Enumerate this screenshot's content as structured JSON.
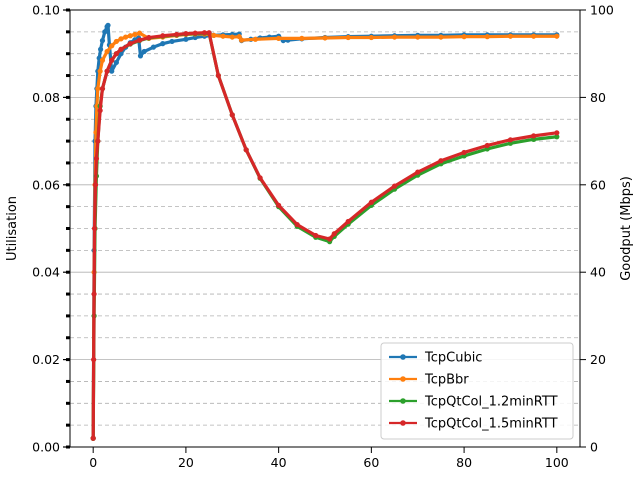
{
  "chart_data": {
    "type": "line",
    "xlabel": "",
    "ylabel_left": "Utilisation",
    "ylabel_right": "Goodput (Mbps)",
    "xlim": [
      -5,
      105
    ],
    "ylim_left": [
      0,
      0.1
    ],
    "ylim_right": [
      0,
      100
    ],
    "x_ticks": [
      0,
      20,
      40,
      60,
      80,
      100
    ],
    "y_left_ticks": [
      0.0,
      0.02,
      0.04,
      0.06,
      0.08,
      0.1
    ],
    "y_left_tick_labels": [
      "0.00",
      "0.02",
      "0.04",
      "0.06",
      "0.08",
      "0.10"
    ],
    "y_right_ticks": [
      0,
      20,
      40,
      60,
      80,
      100
    ],
    "grid": {
      "major_solid": [
        20,
        40,
        60,
        80
      ],
      "minor_dashed": [
        5,
        10,
        15,
        25,
        30,
        35,
        45,
        50,
        55,
        65,
        70,
        75,
        85,
        90,
        95
      ]
    },
    "legend_position": "lower right",
    "series": [
      {
        "name": "TcpCubic",
        "color": "#1f77b4",
        "x": [
          0,
          0.2,
          0.4,
          0.6,
          0.8,
          1.0,
          1.3,
          1.6,
          2.0,
          2.5,
          3.0,
          3.2,
          3.5,
          4,
          5,
          6,
          7,
          8,
          9,
          9.8,
          10.2,
          11,
          13,
          15,
          17,
          20,
          22,
          24,
          26,
          28,
          30,
          31.5,
          32,
          34,
          36,
          38,
          40,
          41,
          42,
          45,
          50,
          55,
          60,
          65,
          70,
          75,
          80,
          85,
          90,
          95,
          100
        ],
        "y": [
          2,
          45,
          70,
          78,
          82,
          86,
          89,
          91,
          93,
          95,
          96.2,
          96.5,
          92,
          86,
          88,
          90,
          91.5,
          92.5,
          93.2,
          93.6,
          89.5,
          90.5,
          91.5,
          92.3,
          92.8,
          93.3,
          93.7,
          94,
          94.2,
          94.3,
          94.4,
          94.5,
          93,
          93.3,
          93.6,
          93.8,
          94,
          93,
          93.1,
          93.4,
          93.7,
          93.9,
          94,
          94.1,
          94.2,
          94.2,
          94.3,
          94.3,
          94.3,
          94.3,
          94.3
        ]
      },
      {
        "name": "TcpBbr",
        "color": "#ff7f0e",
        "x": [
          0,
          0.2,
          0.4,
          0.6,
          0.8,
          1.0,
          1.5,
          2,
          3,
          4,
          5,
          6,
          7,
          8,
          9,
          10,
          12,
          15,
          18,
          20,
          22,
          24,
          26,
          28,
          30,
          31.5,
          32,
          35,
          40,
          45,
          50,
          55,
          60,
          65,
          70,
          75,
          80,
          85,
          90,
          95,
          100
        ],
        "y": [
          2,
          40,
          60,
          72,
          78,
          82,
          86,
          88.5,
          90.5,
          91.8,
          92.8,
          93.4,
          93.8,
          94.1,
          94.4,
          94.7,
          93.5,
          93.8,
          94.2,
          94.4,
          94.5,
          94.5,
          94.2,
          94.0,
          93.8,
          93.9,
          93.1,
          93.3,
          93.5,
          93.5,
          93.6,
          93.7,
          93.7,
          93.8,
          93.8,
          93.8,
          93.9,
          93.9,
          94.0,
          94.0,
          94.0
        ]
      },
      {
        "name": "TcpQtCol_1.2minRTT",
        "color": "#2ca02c",
        "x": [
          0,
          0.2,
          0.4,
          0.7,
          1.0,
          1.5,
          2,
          3,
          4,
          5,
          6,
          8,
          10,
          12,
          15,
          18,
          20,
          22,
          24,
          25,
          27,
          30,
          33,
          36,
          40,
          44,
          48,
          51,
          52,
          55,
          60,
          65,
          70,
          75,
          80,
          85,
          90,
          95,
          100
        ],
        "y": [
          2,
          30,
          50,
          62,
          70,
          78,
          82,
          86,
          88.5,
          90,
          91,
          92.2,
          93,
          93.6,
          94,
          94.3,
          94.5,
          94.6,
          94.7,
          94.7,
          85,
          76,
          68,
          61.5,
          55,
          50.5,
          48,
          47,
          48.2,
          51,
          55.3,
          59,
          62.2,
          64.8,
          66.6,
          68.2,
          69.5,
          70.4,
          71.0
        ]
      },
      {
        "name": "TcpQtCol_1.5minRTT",
        "color": "#d62728",
        "x": [
          0,
          0.1,
          0.2,
          0.3,
          0.5,
          0.7,
          1.0,
          1.5,
          2,
          3,
          4,
          5,
          6,
          8,
          10,
          12,
          15,
          18,
          20,
          22,
          24,
          25,
          27,
          30,
          33,
          36,
          40,
          44,
          48,
          51,
          52,
          55,
          60,
          65,
          70,
          75,
          80,
          85,
          90,
          95,
          100
        ],
        "y": [
          2,
          20,
          35,
          50,
          60,
          66,
          70,
          77,
          82,
          86,
          88.5,
          90,
          91,
          92.3,
          93.1,
          93.7,
          94.1,
          94.4,
          94.6,
          94.7,
          94.8,
          94.8,
          85,
          76,
          68,
          61.6,
          55.3,
          50.9,
          48.4,
          47.6,
          48.8,
          51.6,
          56,
          59.7,
          62.9,
          65.5,
          67.4,
          69,
          70.3,
          71.2,
          71.9
        ]
      }
    ]
  }
}
